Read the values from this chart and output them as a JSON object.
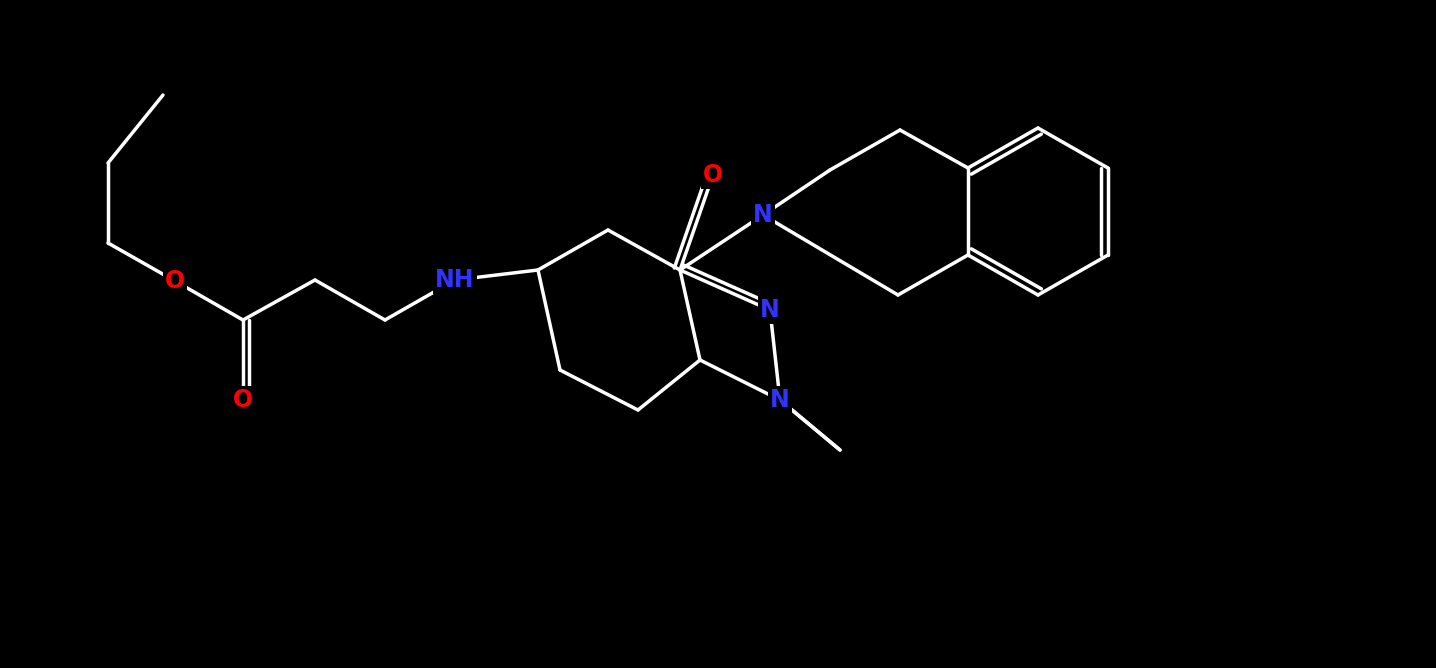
{
  "bg": "#000000",
  "white": "#ffffff",
  "blue": "#3333ff",
  "red": "#ff0000",
  "lw": 2.5,
  "fs": 17,
  "atoms": {
    "O1_label": "O",
    "O2_label": "O",
    "O3_label": "O",
    "NH_label": "NH",
    "N1_label": "N",
    "N2_label": "N",
    "N3_label": "N"
  }
}
